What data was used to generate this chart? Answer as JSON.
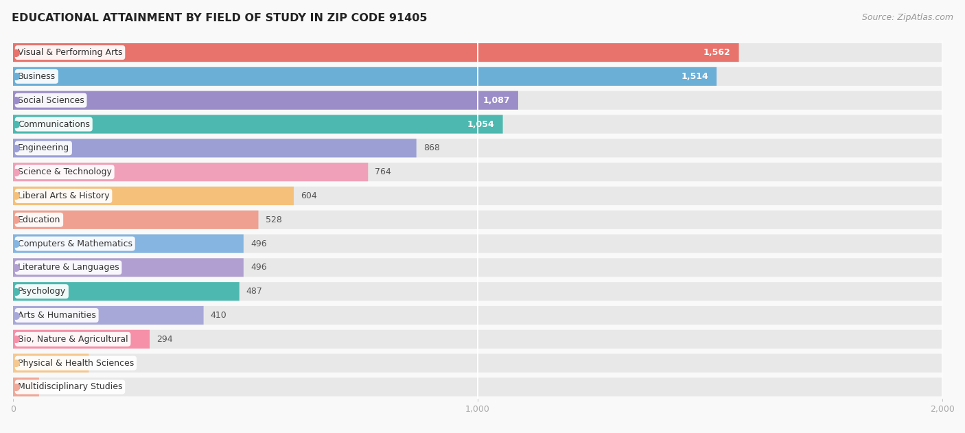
{
  "title": "EDUCATIONAL ATTAINMENT BY FIELD OF STUDY IN ZIP CODE 91405",
  "source": "Source: ZipAtlas.com",
  "categories": [
    "Visual & Performing Arts",
    "Business",
    "Social Sciences",
    "Communications",
    "Engineering",
    "Science & Technology",
    "Liberal Arts & History",
    "Education",
    "Computers & Mathematics",
    "Literature & Languages",
    "Psychology",
    "Arts & Humanities",
    "Bio, Nature & Agricultural",
    "Physical & Health Sciences",
    "Multidisciplinary Studies"
  ],
  "values": [
    1562,
    1514,
    1087,
    1054,
    868,
    764,
    604,
    528,
    496,
    496,
    487,
    410,
    294,
    163,
    56
  ],
  "bar_colors": [
    "#E8736C",
    "#6BAED6",
    "#9B8DC8",
    "#4DB8AF",
    "#9B9FD4",
    "#F0A0B8",
    "#F5C07A",
    "#F0A090",
    "#85B5E0",
    "#B09FD0",
    "#4DB8B0",
    "#A8A8D8",
    "#F590A8",
    "#F5C890",
    "#F0A898"
  ],
  "xlim": [
    0,
    2000
  ],
  "background_color": "#f9f9f9",
  "bar_background_color": "#e8e8e8",
  "title_fontsize": 11.5,
  "source_fontsize": 9,
  "value_label_fontsize": 9,
  "category_fontsize": 9,
  "tick_fontsize": 9
}
